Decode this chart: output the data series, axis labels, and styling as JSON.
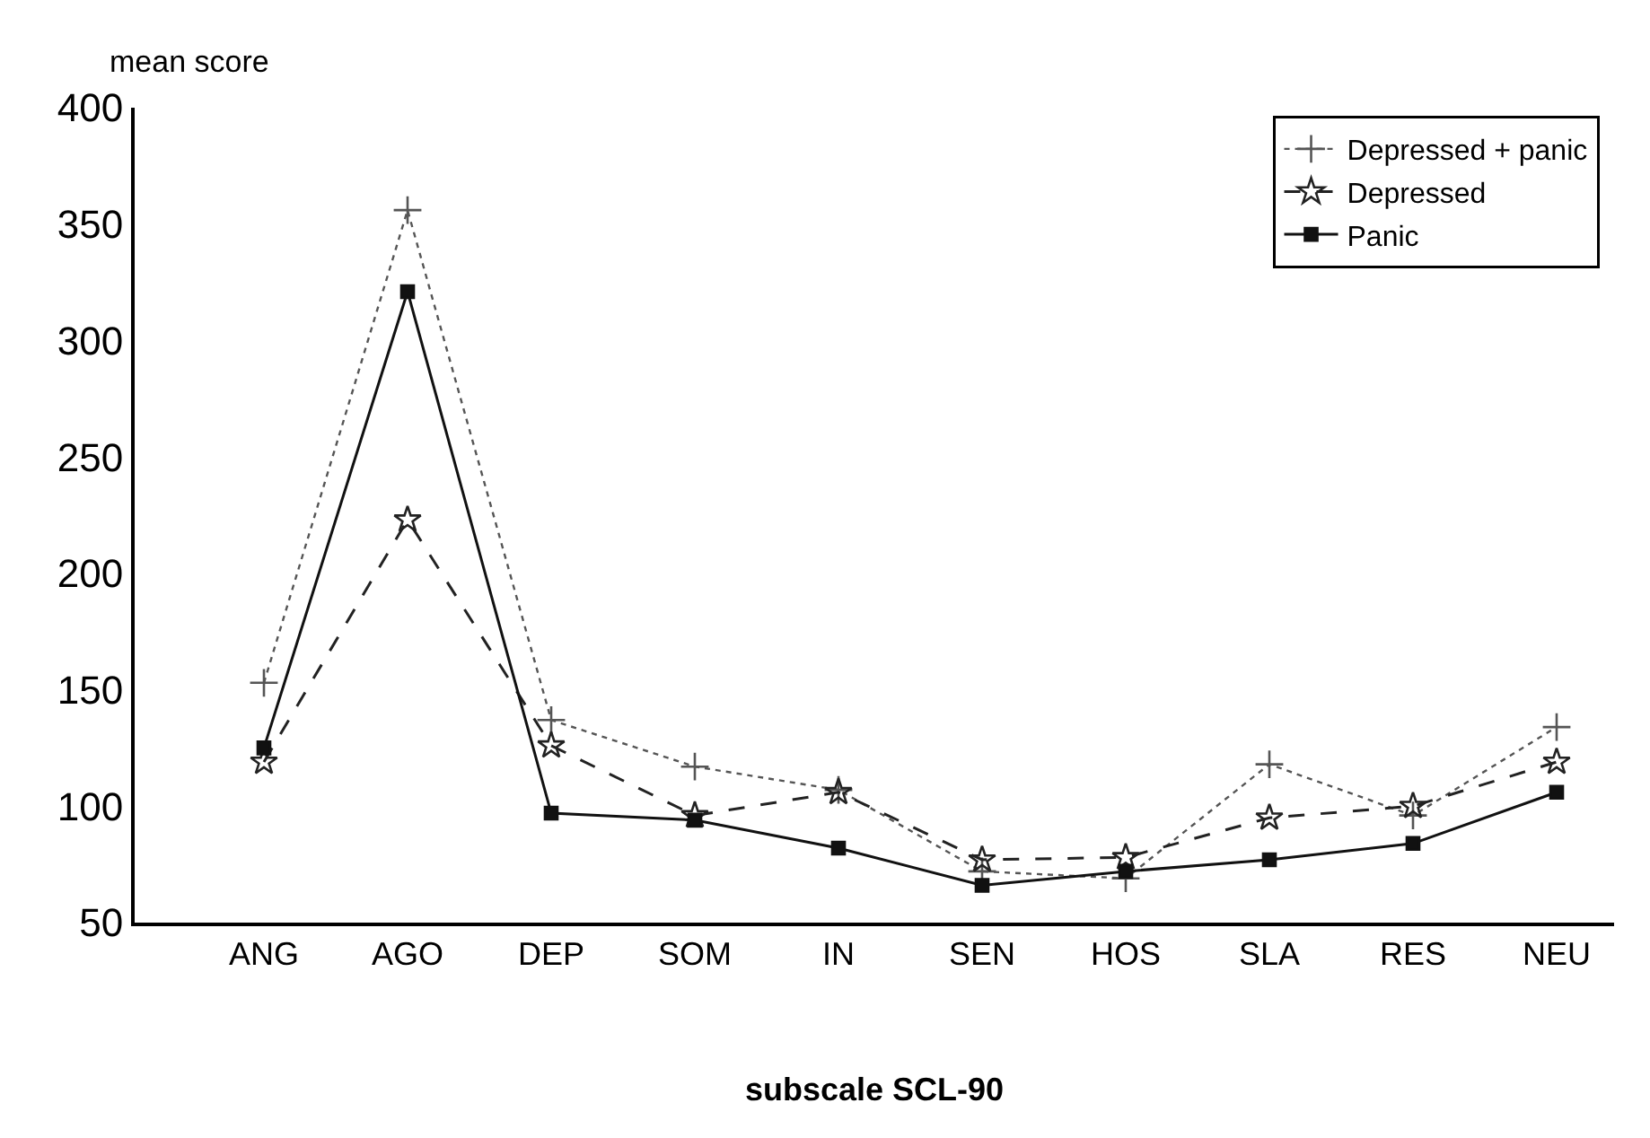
{
  "chart_data": {
    "type": "line",
    "xlabel": "subscale SCL-90",
    "ylabel": "mean score",
    "categories": [
      "ANG",
      "AGO",
      "DEP",
      "SOM",
      "IN",
      "SEN",
      "HOS",
      "SLA",
      "RES",
      "NEU"
    ],
    "series": [
      {
        "name": "Depressed + panic",
        "color": "#555555",
        "marker": "cross",
        "line_style": "dotted",
        "values": [
          153,
          356,
          137,
          117,
          107,
          72,
          69,
          118,
          96,
          134
        ]
      },
      {
        "name": "Depressed",
        "color": "#222222",
        "marker": "star",
        "line_style": "dashed",
        "values": [
          119,
          223,
          126,
          96,
          106,
          77,
          78,
          95,
          100,
          119
        ]
      },
      {
        "name": "Panic",
        "color": "#111111",
        "marker": "square",
        "line_style": "solid",
        "values": [
          125,
          321,
          97,
          94,
          82,
          66,
          72,
          77,
          84,
          106
        ]
      }
    ],
    "ylim": [
      50,
      400
    ],
    "yticks": [
      50,
      100,
      150,
      200,
      250,
      300,
      350,
      400
    ],
    "legend": "top right"
  }
}
